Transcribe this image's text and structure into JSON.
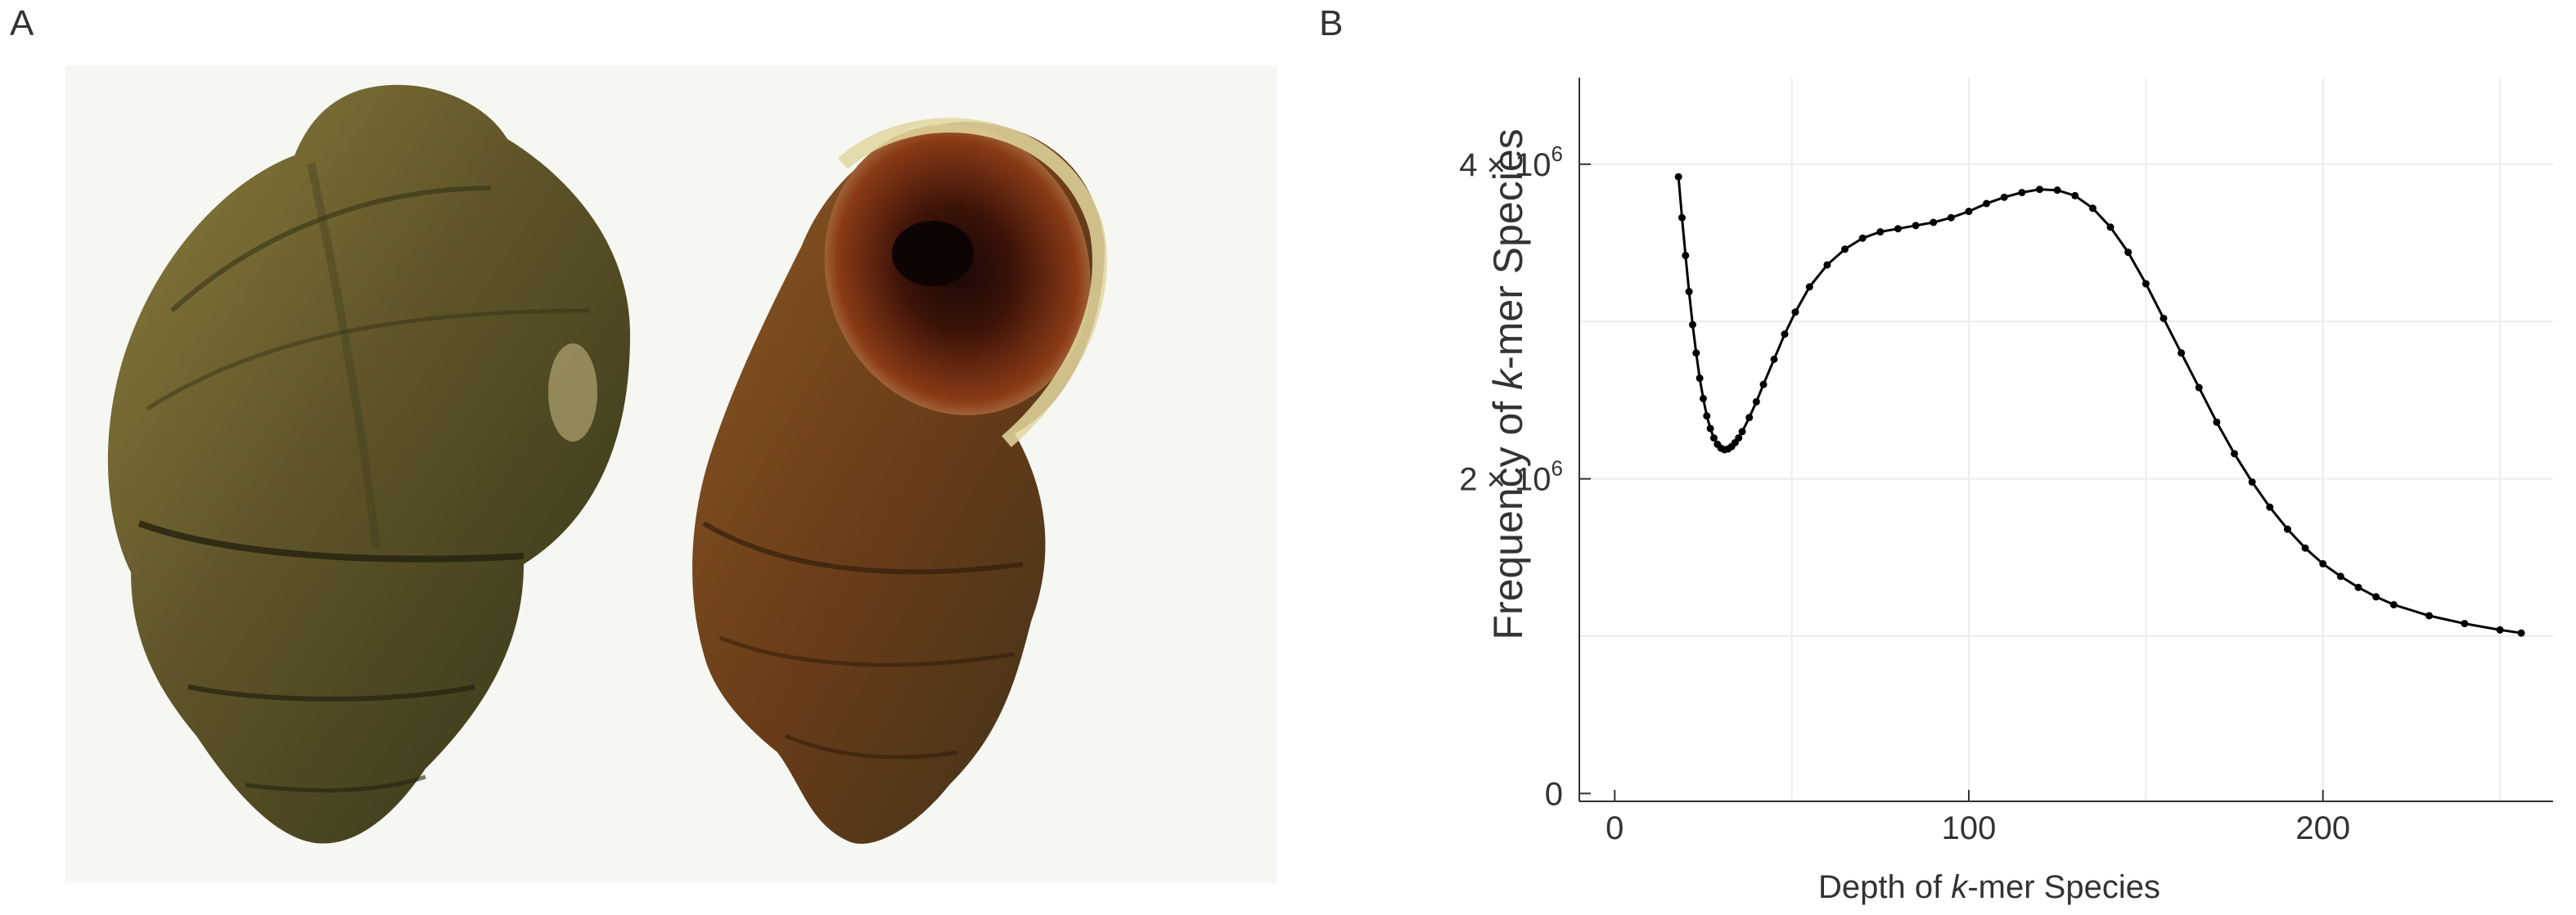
{
  "panels": {
    "a_label": "A",
    "b_label": "B"
  },
  "colors": {
    "shell_dark": "#3d3a1c",
    "shell_mid": "#6b5e2c",
    "shell_light": "#a89a5a",
    "aperture": "#7a2e10",
    "line": "#000000",
    "grid": "#ececec"
  },
  "chart_data": {
    "type": "line",
    "xlabel_prefix": "Depth of ",
    "xlabel_k": "k",
    "xlabel_suffix": "-mer Species",
    "ylabel_prefix": "Frequency of ",
    "ylabel_k": "k",
    "ylabel_suffix": "-mer Species",
    "xlim": [
      -10,
      265
    ],
    "ylim": [
      -50000,
      4550000
    ],
    "xticks": [
      {
        "value": 0,
        "label": "0"
      },
      {
        "value": 100,
        "label": "100"
      },
      {
        "value": 200,
        "label": "200"
      }
    ],
    "yticks": [
      {
        "value": 0,
        "base": "0",
        "exp": ""
      },
      {
        "value": 2000000,
        "base": "2 × 10",
        "exp": "6"
      },
      {
        "value": 4000000,
        "base": "4 × 10",
        "exp": "6"
      }
    ],
    "grid": true,
    "series": [
      {
        "x": [
          18,
          19,
          20,
          21,
          22,
          23,
          24,
          25,
          26,
          27,
          28,
          29,
          30,
          31,
          32,
          33,
          34,
          35,
          36,
          38,
          40,
          42,
          45,
          48,
          51,
          55,
          60,
          65,
          70,
          75,
          80,
          85,
          90,
          95,
          100,
          105,
          110,
          115,
          120,
          125,
          130,
          135,
          140,
          145,
          150,
          155,
          160,
          165,
          170,
          175,
          180,
          185,
          190,
          195,
          200,
          205,
          210,
          215,
          220,
          230,
          240,
          250,
          256
        ],
        "y": [
          3920000,
          3660000,
          3420000,
          3190000,
          2980000,
          2800000,
          2640000,
          2510000,
          2400000,
          2320000,
          2260000,
          2220000,
          2195000,
          2185000,
          2190000,
          2205000,
          2230000,
          2260000,
          2300000,
          2390000,
          2490000,
          2600000,
          2760000,
          2920000,
          3060000,
          3220000,
          3360000,
          3460000,
          3530000,
          3570000,
          3590000,
          3610000,
          3630000,
          3660000,
          3700000,
          3750000,
          3790000,
          3820000,
          3840000,
          3835000,
          3800000,
          3720000,
          3600000,
          3440000,
          3240000,
          3020000,
          2800000,
          2580000,
          2360000,
          2160000,
          1980000,
          1820000,
          1680000,
          1560000,
          1460000,
          1380000,
          1310000,
          1250000,
          1200000,
          1130000,
          1080000,
          1040000,
          1020000
        ]
      }
    ]
  }
}
